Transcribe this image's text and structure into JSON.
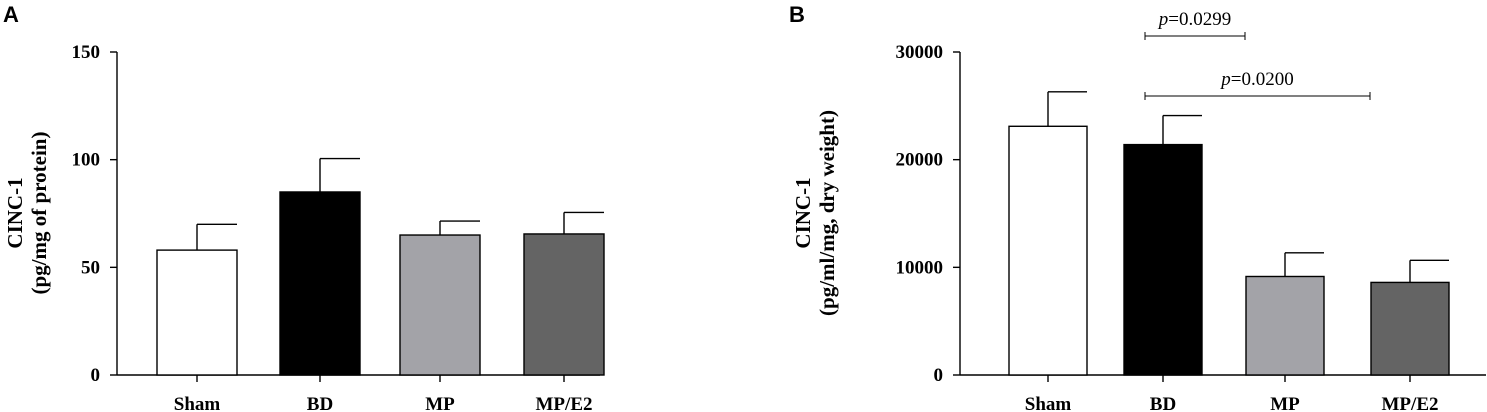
{
  "colors": {
    "Sham": "#ffffff",
    "BD": "#000000",
    "MP": "#a3a3a8",
    "MP/E2": "#646464"
  },
  "panels": [
    {
      "letter": "A",
      "ylabel_line1": "CINC-1",
      "ylabel_line2": "(pg/mg of protein)",
      "ytick_labels": [
        "0",
        "50",
        "100",
        "150"
      ],
      "annotations": []
    },
    {
      "letter": "B",
      "ylabel_line1": "CINC-1",
      "ylabel_line2": "(pg/ml/mg, dry weight)",
      "ytick_labels": [
        "0",
        "10000",
        "20000",
        "30000"
      ],
      "annotations": [
        {
          "p_symbol": "p",
          "text": "=0.0299",
          "from": "BD",
          "to": "MP"
        },
        {
          "p_symbol": "p",
          "text": "=0.0200",
          "from": "BD",
          "to": "MP/E2"
        }
      ]
    }
  ],
  "chart_data": [
    {
      "type": "bar",
      "title": "",
      "xlabel": "",
      "ylabel": "CINC-1 (pg/mg of protein)",
      "categories": [
        "Sham",
        "BD",
        "MP",
        "MP/E2"
      ],
      "values": [
        58,
        85,
        65,
        65.5
      ],
      "error_upper": [
        70,
        100.5,
        71.5,
        75.5
      ],
      "yticks": [
        0,
        50,
        100,
        150
      ],
      "ylim": [
        0,
        150
      ],
      "grid": false,
      "legend": "none"
    },
    {
      "type": "bar",
      "title": "",
      "xlabel": "",
      "ylabel": "CINC-1 (pg/ml/mg, dry weight)",
      "categories": [
        "Sham",
        "BD",
        "MP",
        "MP/E2"
      ],
      "values": [
        23100,
        21400,
        9150,
        8600
      ],
      "error_upper": [
        26300,
        24100,
        11350,
        10650
      ],
      "yticks": [
        0,
        10000,
        20000,
        30000
      ],
      "ylim": [
        0,
        30000
      ],
      "grid": false,
      "legend": "none"
    }
  ]
}
